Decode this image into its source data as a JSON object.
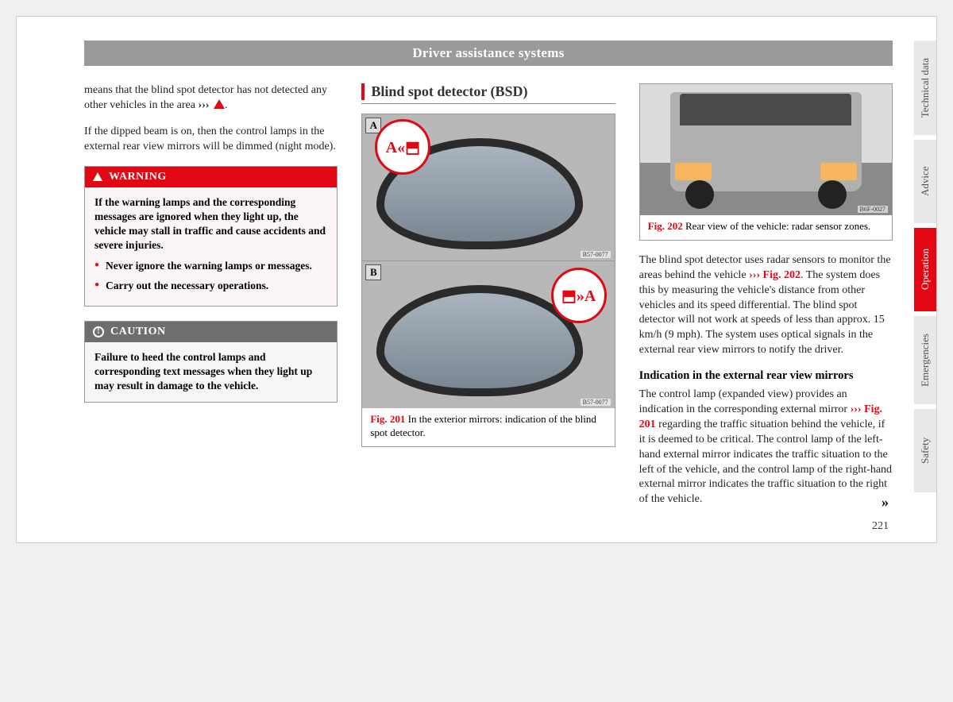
{
  "header": {
    "title": "Driver assistance systems"
  },
  "tabs": {
    "items": [
      {
        "label": "Technical data",
        "active": false
      },
      {
        "label": "Advice",
        "active": false
      },
      {
        "label": "Operation",
        "active": true
      },
      {
        "label": "Emergencies",
        "active": false
      },
      {
        "label": "Safety",
        "active": false
      }
    ]
  },
  "pageNumber": "221",
  "col1": {
    "p1_a": "means that the blind spot detector has not detected any other vehicles in the area ",
    "ref1": "›››",
    "p2": "If the dipped beam is on, then the control lamps in the external rear view mirrors will be dimmed (night mode).",
    "warning": {
      "title": "WARNING",
      "intro": "If the warning lamps and the corresponding messages are ignored when they light up, the vehicle may stall in traffic and cause accidents and severe injuries.",
      "b1": "Never ignore the warning lamps or messages.",
      "b2": "Carry out the necessary operations."
    },
    "caution": {
      "title": "CAUTION",
      "text": "Failure to heed the control lamps and corresponding text messages when they light up may result in damage to the vehicle."
    }
  },
  "col2": {
    "section_title": "Blind spot detector (BSD)",
    "fig201": {
      "labelA": "A",
      "labelB": "B",
      "codeA": "B57-0077",
      "codeB": "B57-0077",
      "bubbleA": "A«⬒",
      "bubbleB": "⬒»A",
      "num": "Fig. 201",
      "caption": "In the exterior mirrors: indication of the blind spot detector."
    }
  },
  "col3": {
    "fig202": {
      "code": "B6F-0027",
      "num": "Fig. 202",
      "caption": "Rear view of the vehicle: radar sensor zones."
    },
    "p1a": "The blind spot detector uses radar sensors to monitor the areas behind the vehicle ",
    "ref202": "››› Fig. 202",
    "p1b": ". The system does this by measuring the vehicle's distance from other vehicles and its speed differential. The blind spot detector will not work at speeds of less than approx. 15 km/h (9 mph). The system uses optical signals in the external rear view mirrors to notify the driver.",
    "subhead": "Indication in the external rear view mirrors",
    "p2a": "The control lamp (expanded view) provides an indication in the corresponding external mirror ",
    "ref201": "››› Fig. 201",
    "p2b": " regarding the traffic situation behind the vehicle, if it is deemed to be critical. The control lamp of the left-hand external mirror indicates the traffic situation to the left of the vehicle, and the control lamp of the right-hand external mirror indicates the traffic situation to the right of the vehicle."
  },
  "continuation": "»"
}
